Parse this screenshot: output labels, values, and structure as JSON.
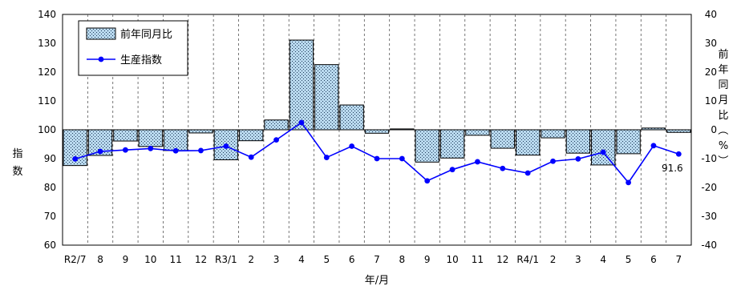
{
  "chart_data": {
    "type": "bar+line",
    "categories": [
      "R2/7",
      "8",
      "9",
      "10",
      "11",
      "12",
      "R3/1",
      "2",
      "3",
      "4",
      "5",
      "6",
      "7",
      "8",
      "9",
      "10",
      "11",
      "12",
      "R4/1",
      "2",
      "3",
      "4",
      "5",
      "6",
      "7"
    ],
    "series": [
      {
        "name": "前年同月比",
        "type": "bar",
        "axis": "right",
        "values": [
          -12.4,
          -8.9,
          -3.9,
          -5.8,
          -7.2,
          -1.1,
          -10.4,
          -3.8,
          3.4,
          31.1,
          22.6,
          8.6,
          -1.2,
          0.3,
          -11.2,
          -9.8,
          -1.9,
          -6.4,
          -8.8,
          -2.8,
          -8.1,
          -12.2,
          -8.3,
          0.6,
          -0.9
        ],
        "color": "#b9d9ee"
      },
      {
        "name": "生産指数",
        "type": "line",
        "axis": "left",
        "values": [
          89.9,
          92.5,
          93.0,
          93.5,
          92.7,
          92.8,
          94.3,
          90.5,
          96.5,
          102.5,
          90.4,
          94.3,
          90.0,
          90.0,
          82.3,
          86.2,
          88.9,
          86.6,
          85.0,
          89.1,
          89.9,
          92.2,
          81.7,
          94.5,
          91.6
        ],
        "color": "#0000ff"
      }
    ],
    "left_axis": {
      "label": "指数",
      "ylim": [
        60,
        140
      ],
      "ticks": [
        60,
        70,
        80,
        90,
        100,
        110,
        120,
        130,
        140
      ]
    },
    "right_axis": {
      "label": "前年同月比（%）",
      "ylim": [
        -40,
        40
      ],
      "ticks": [
        -40,
        -30,
        -20,
        -10,
        0,
        10,
        20,
        30,
        40
      ]
    },
    "xlabel": "年/月",
    "annotations": [
      {
        "category_index": 24,
        "text": "91.6"
      }
    ],
    "legend_position": "top-left",
    "grid": {
      "vertical": "dashed",
      "horizontal": "none"
    }
  }
}
